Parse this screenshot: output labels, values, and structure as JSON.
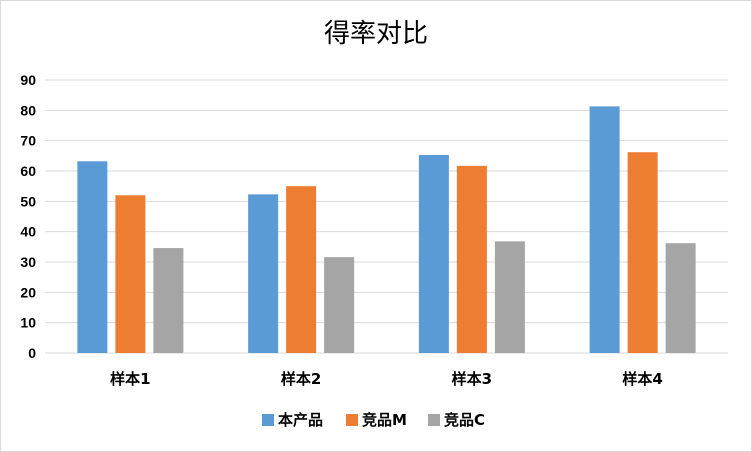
{
  "chart_data": {
    "type": "bar",
    "title": "得率对比",
    "xlabel": "",
    "ylabel": "",
    "categories": [
      "样本1",
      "样本2",
      "样本3",
      "样本4"
    ],
    "series": [
      {
        "name": "本产品",
        "color": "#5B9BD5",
        "values": [
          63.2,
          52.3,
          65.3,
          81.3
        ]
      },
      {
        "name": "竞品M",
        "color": "#ED7D31",
        "values": [
          52.0,
          55.0,
          61.7,
          66.2
        ]
      },
      {
        "name": "竞品C",
        "color": "#A5A5A5",
        "values": [
          34.6,
          31.6,
          36.8,
          36.2
        ]
      }
    ],
    "ylim": [
      0,
      90
    ],
    "yticks": [
      0,
      10,
      20,
      30,
      40,
      50,
      60,
      70,
      80,
      90
    ],
    "grid": true,
    "legend_position": "bottom"
  }
}
